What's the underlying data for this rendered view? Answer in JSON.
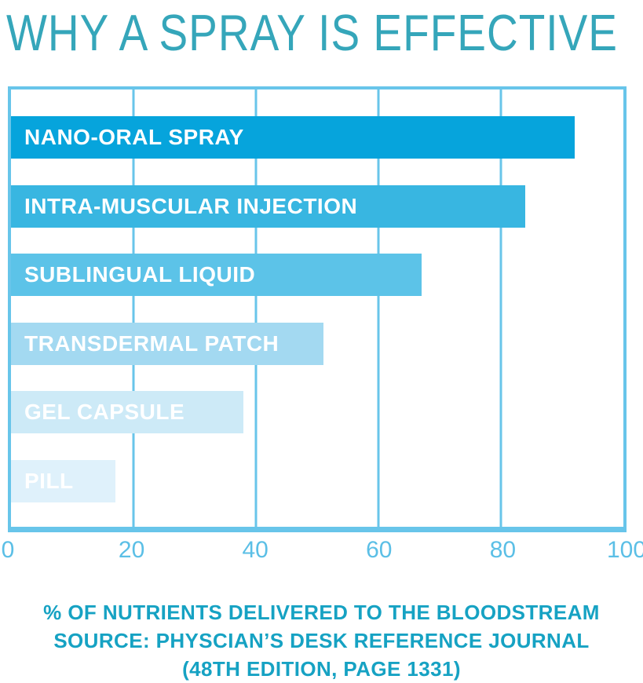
{
  "title": "WHY A SPRAY IS EFFECTIVE",
  "chart_data": {
    "type": "bar",
    "orientation": "horizontal",
    "title": "WHY A SPRAY IS EFFECTIVE",
    "categories": [
      "NANO-ORAL SPRAY",
      "INTRA-MUSCULAR INJECTION",
      "SUBLINGUAL LIQUID",
      "TRANSDERMAL PATCH",
      "GEL CAPSULE",
      "PILL"
    ],
    "values": [
      92,
      84,
      67,
      51,
      38,
      17
    ],
    "bar_colors": [
      "#06a4dc",
      "#38b6e1",
      "#5cc3e8",
      "#a3d9f1",
      "#cdeaf7",
      "#dff1fb"
    ],
    "xlabel": "% OF NUTRIENTS DELIVERED TO THE BLOODSTREAM",
    "xlim": [
      0,
      100
    ],
    "x_ticks": [
      0,
      20,
      40,
      60,
      80,
      100
    ],
    "grid": true,
    "legend": false
  },
  "footer": {
    "line1": "% OF NUTRIENTS DELIVERED TO THE BLOODSTREAM",
    "line2": "SOURCE: PHYSCIAN’S DESK REFERENCE JOURNAL",
    "line3": "(48TH EDITION, PAGE 1331)"
  },
  "colors": {
    "title_text": "#35a6ba",
    "footer_text": "#16a2c3",
    "grid": "#68c5ea",
    "tick_text": "#5bbfe6",
    "bar_label": "#ffffff",
    "background": "#ffffff"
  },
  "layout": {
    "bar_top_start_pct": 6.1,
    "bar_step_pct": 15.72,
    "bar_height_pct": 9.7
  }
}
